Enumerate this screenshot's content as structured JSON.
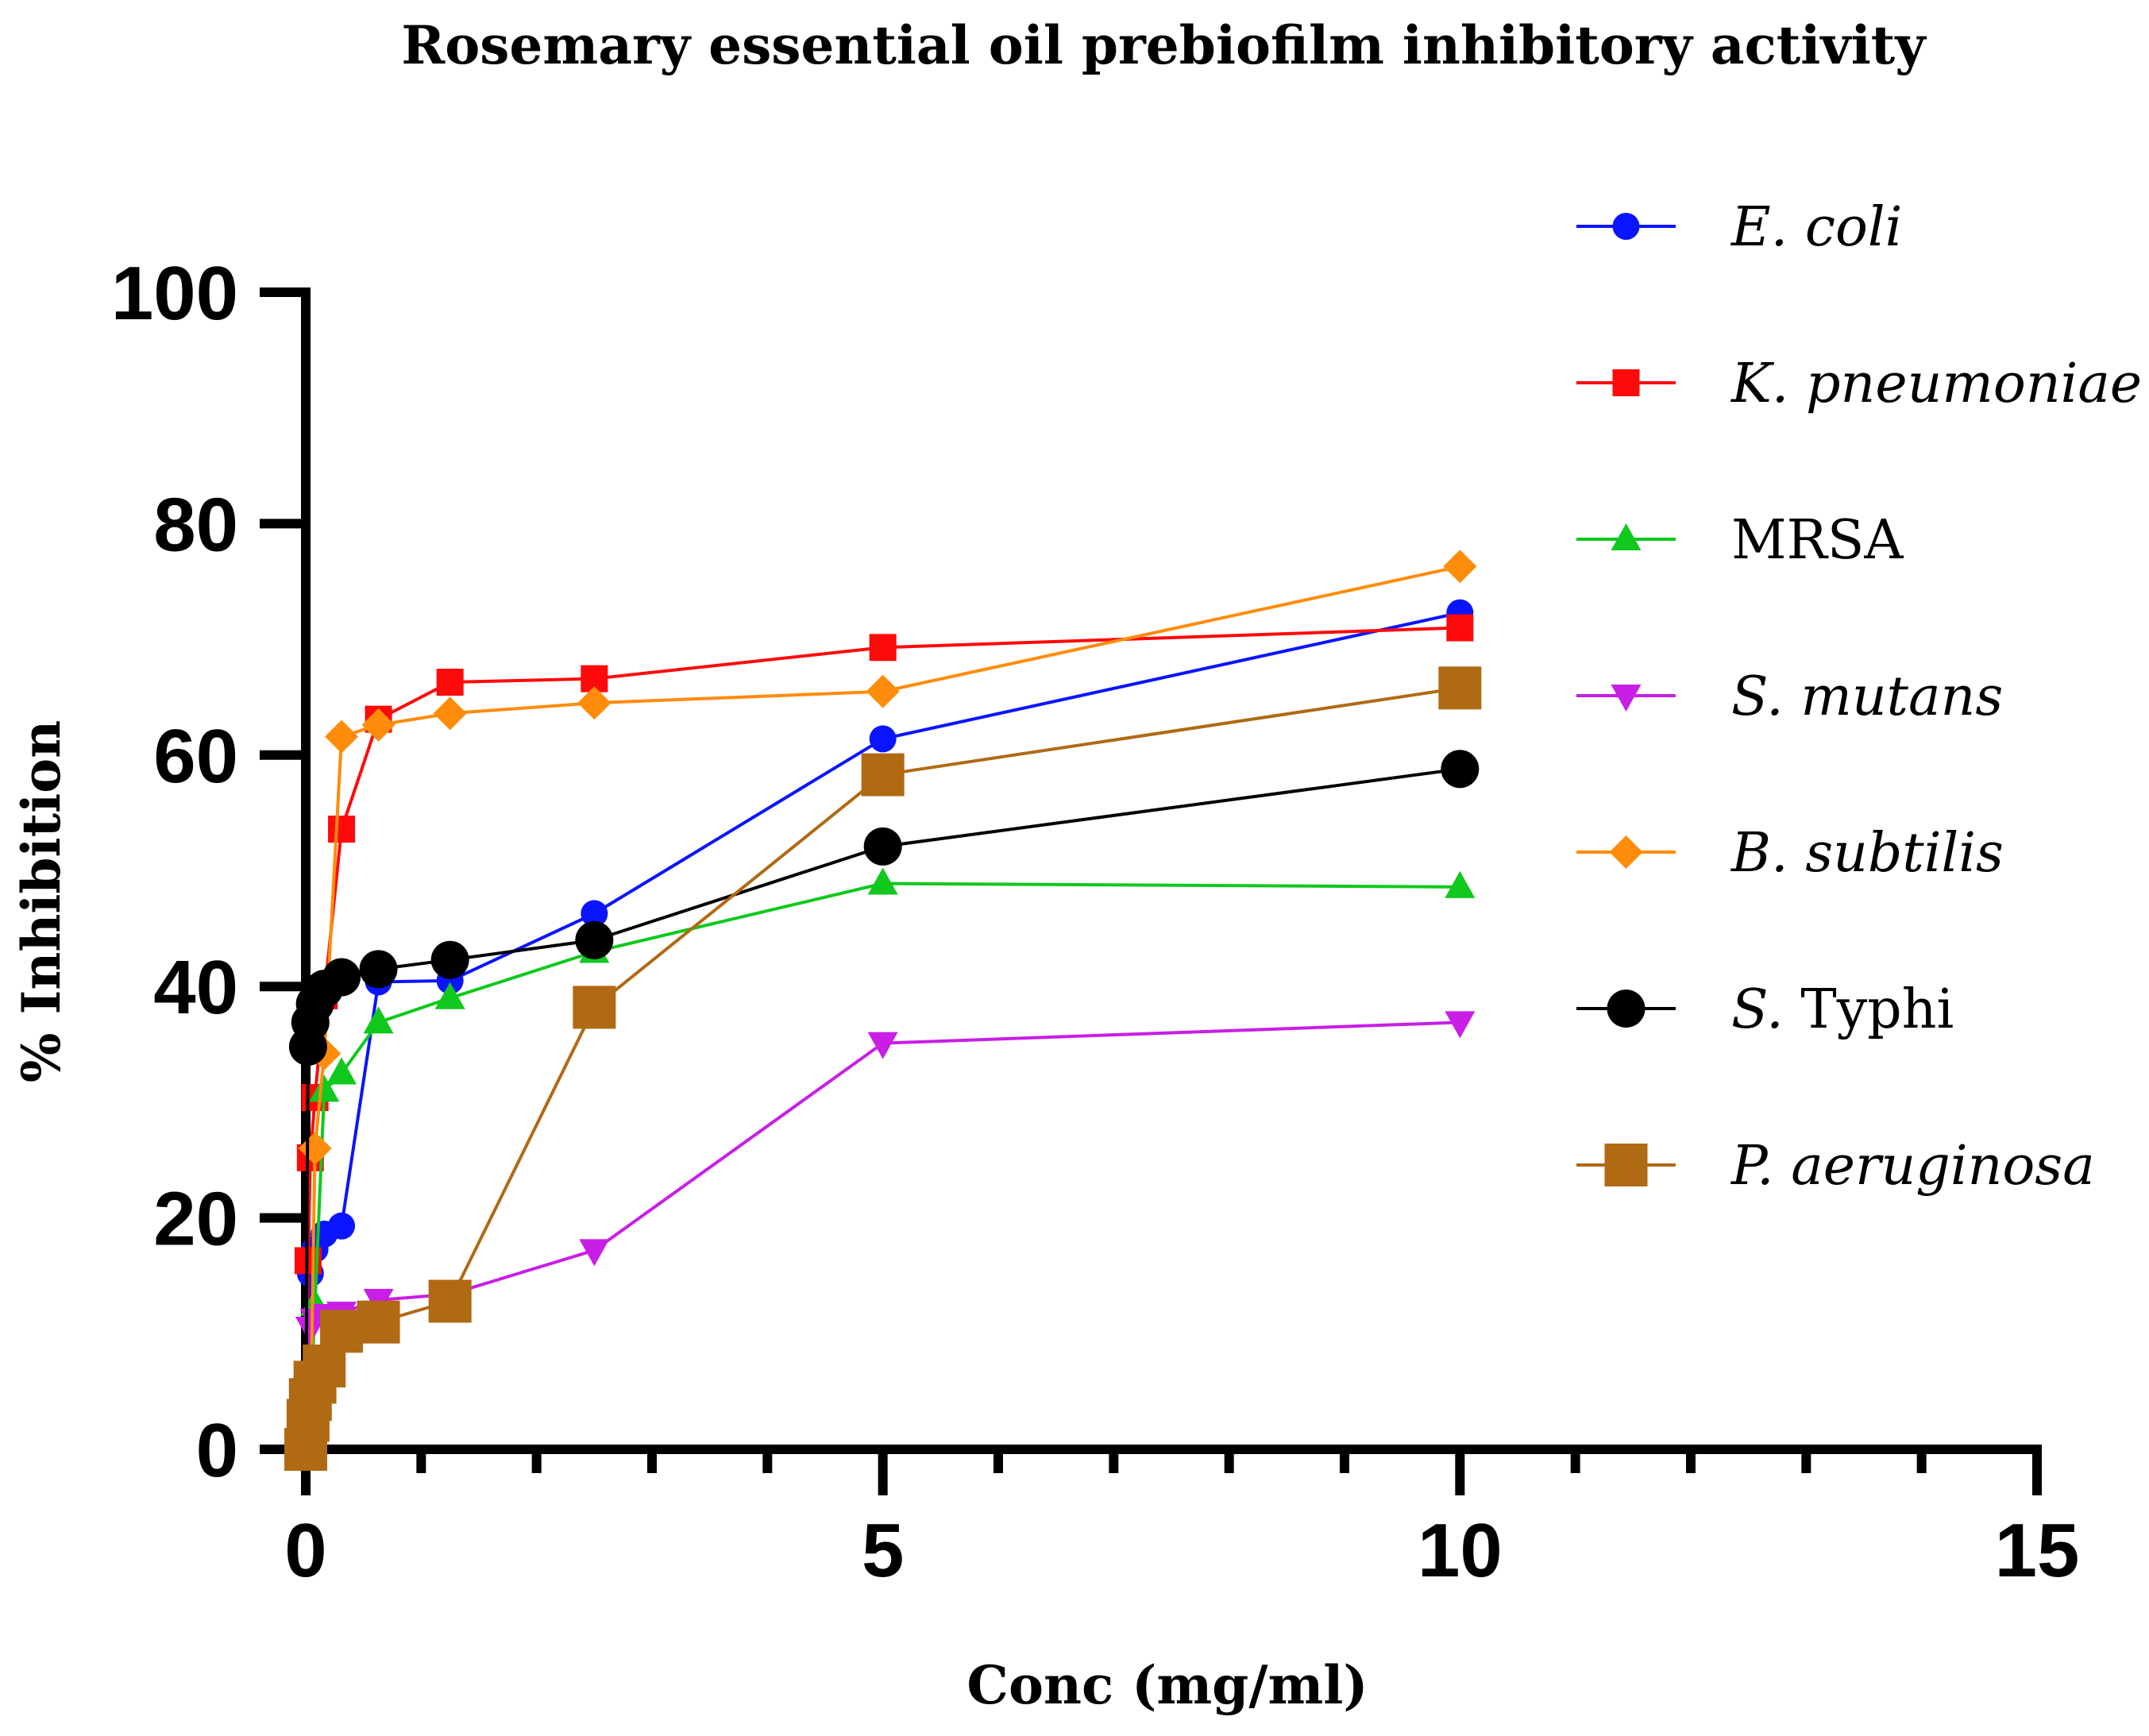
{
  "chart_data": {
    "type": "line",
    "title": "Rosemary essential oil prebiofilm inhibitory activity",
    "xlabel": "Conc (mg/ml)",
    "ylabel": "% Inhibition",
    "xlim": [
      0,
      15
    ],
    "ylim": [
      0,
      100
    ],
    "x_ticks": [
      0,
      5,
      10,
      15
    ],
    "y_ticks": [
      0,
      20,
      40,
      60,
      80,
      100
    ],
    "x_minor_step": 1,
    "x_tick_labels": [
      "0",
      "5",
      "10",
      "15"
    ],
    "y_tick_labels": [
      "0",
      "20",
      "40",
      "60",
      "80",
      "100"
    ],
    "legend_position": "right",
    "series": [
      {
        "name": "E. coli",
        "italic_part": "E. coli",
        "roman_part": "",
        "color": "#0a14ff",
        "marker": "circle",
        "x": [
          0,
          0.04,
          0.08,
          0.16,
          0.31,
          0.63,
          1.25,
          2.5,
          5,
          10
        ],
        "y": [
          0,
          15.2,
          17.3,
          18.6,
          19.3,
          40.4,
          40.5,
          46.3,
          61.4,
          72.3
        ]
      },
      {
        "name": "K. pneumoniae",
        "italic_part": "K. pneumoniae",
        "roman_part": "",
        "color": "#ff0a0a",
        "marker": "square",
        "x": [
          0,
          0.02,
          0.04,
          0.08,
          0.16,
          0.31,
          0.63,
          1.25,
          2.5,
          5,
          10
        ],
        "y": [
          0,
          16.3,
          25.2,
          30.4,
          39.2,
          53.6,
          63.1,
          66.3,
          66.6,
          69.3,
          71.0
        ]
      },
      {
        "name": "MRSA",
        "italic_part": "",
        "roman_part": "MRSA",
        "color": "#10c81e",
        "marker": "triangle-up",
        "x": [
          0,
          0.04,
          0.08,
          0.16,
          0.31,
          0.63,
          1.25,
          2.5,
          5,
          10
        ],
        "y": [
          0,
          3.5,
          12.5,
          31.0,
          32.5,
          36.9,
          39.0,
          43.0,
          48.9,
          48.6
        ]
      },
      {
        "name": "S. mutans",
        "italic_part": "S. mutans",
        "roman_part": "",
        "color": "#c81ee6",
        "marker": "triangle-down",
        "x": [
          0,
          0.04,
          0.08,
          0.16,
          0.31,
          0.63,
          1.25,
          2.5,
          5,
          10
        ],
        "y": [
          0,
          10.5,
          11.2,
          11.6,
          11.8,
          12.9,
          13.4,
          17.2,
          35.1,
          36.9
        ]
      },
      {
        "name": "B. subtilis",
        "italic_part": "B. subtilis",
        "roman_part": "",
        "color": "#ff8c0a",
        "marker": "diamond",
        "x": [
          0,
          0.04,
          0.08,
          0.16,
          0.31,
          0.63,
          1.25,
          2.5,
          5,
          10
        ],
        "y": [
          0,
          1.5,
          26.0,
          34.2,
          61.6,
          62.6,
          63.6,
          64.5,
          65.5,
          76.3
        ]
      },
      {
        "name": "S. Typhi",
        "italic_part": "S.",
        "roman_part": " Typhi",
        "color": "#000000",
        "marker": "circle",
        "x": [
          0,
          0.02,
          0.04,
          0.08,
          0.16,
          0.31,
          0.63,
          1.25,
          2.5,
          5,
          10
        ],
        "y": [
          0,
          34.8,
          36.9,
          38.5,
          39.8,
          40.8,
          41.5,
          42.3,
          44.0,
          52.1,
          58.8
        ]
      },
      {
        "name": "P. aeruginosa",
        "italic_part": "P. aeruginosa",
        "roman_part": "",
        "color": "#b06a14",
        "marker": "square",
        "x": [
          0,
          0.02,
          0.04,
          0.08,
          0.16,
          0.31,
          0.63,
          1.25,
          2.5,
          5,
          10
        ],
        "y": [
          0,
          2.5,
          4.3,
          5.8,
          7.2,
          10.2,
          11.0,
          12.8,
          38.2,
          58.3,
          65.8
        ]
      }
    ]
  }
}
